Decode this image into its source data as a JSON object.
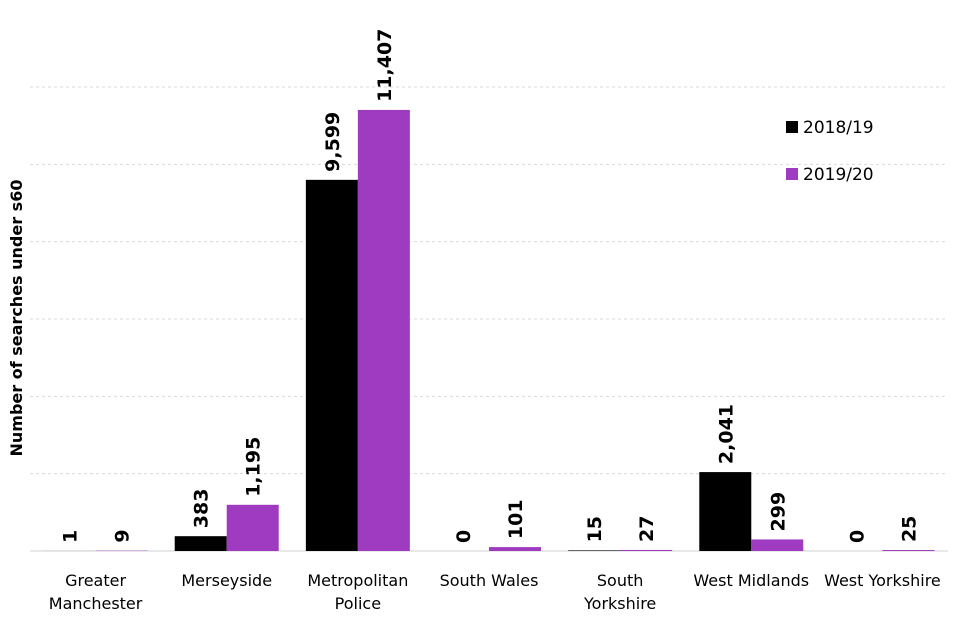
{
  "chart_data": {
    "type": "bar",
    "title": "",
    "xlabel": "",
    "ylabel": "Number of searches under s60",
    "ylim": [
      0,
      12000
    ],
    "grid": true,
    "legend_position": "top-right",
    "categories": [
      [
        "Greater",
        "Manchester"
      ],
      [
        "Merseyside"
      ],
      [
        "Metropolitan",
        "Police"
      ],
      [
        "South Wales"
      ],
      [
        "South",
        "Yorkshire"
      ],
      [
        "West Midlands"
      ],
      [
        "West Yorkshire"
      ]
    ],
    "series": [
      {
        "name": "2018/19",
        "color": "#000000",
        "values": [
          1,
          383,
          9599,
          0,
          15,
          2041,
          0
        ],
        "labels": [
          "1",
          "383",
          "9,599",
          "0",
          "15",
          "2,041",
          "0"
        ]
      },
      {
        "name": "2019/20",
        "color": "#9e3bc1",
        "values": [
          9,
          1195,
          11407,
          101,
          27,
          299,
          25
        ],
        "labels": [
          "9",
          "1,195",
          "11,407",
          "101",
          "27",
          "299",
          "25"
        ]
      }
    ]
  }
}
